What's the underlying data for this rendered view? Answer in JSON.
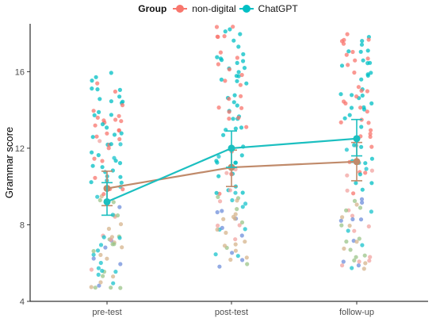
{
  "chart_data": {
    "type": "scatter",
    "legend": {
      "title": "Group",
      "placement": "top",
      "entries": [
        {
          "name": "non-digital",
          "color": "#F8766D"
        },
        {
          "name": "ChatGPT",
          "color": "#00BFC4"
        }
      ]
    },
    "xlabel": "",
    "ylabel": "Grammar score",
    "categories": [
      "pre-test",
      "post-test",
      "follow-up"
    ],
    "ylim": [
      4,
      18.5
    ],
    "yticks": [
      4,
      8,
      12,
      16
    ],
    "grid": false,
    "series": [
      {
        "name": "non-digital",
        "color": "#C08A6A",
        "means": [
          9.9,
          11.0,
          11.3
        ],
        "ci_low": [
          9.0,
          10.0,
          10.3
        ],
        "ci_high": [
          10.8,
          11.9,
          12.3
        ]
      },
      {
        "name": "ChatGPT",
        "color": "#1BBFC0",
        "means": [
          9.2,
          12.0,
          12.5
        ],
        "ci_low": [
          8.5,
          11.0,
          11.6
        ],
        "ci_high": [
          10.2,
          12.9,
          13.5
        ]
      }
    ]
  }
}
